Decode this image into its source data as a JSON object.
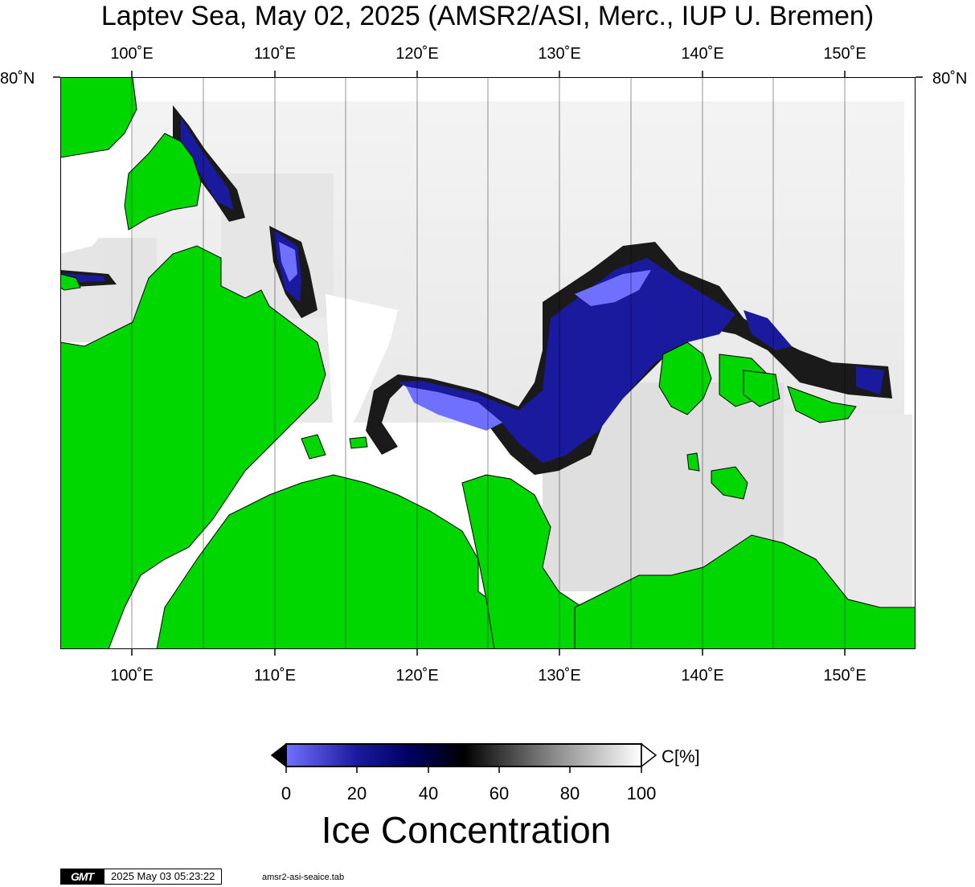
{
  "map": {
    "title": "Laptev Sea, May 02, 2025 (AMSR2/ASI, Merc., IUP U. Bremen)",
    "lon_labels": [
      "100˚E",
      "110˚E",
      "120˚E",
      "130˚E",
      "140˚E",
      "150˚E"
    ],
    "lat_label": "80˚N",
    "lon_range": [
      95,
      155
    ],
    "colors": {
      "land": "#00d700",
      "open_water": "#ffffff",
      "gridline": "#000000"
    }
  },
  "colorbar": {
    "ticks": [
      "0",
      "20",
      "40",
      "60",
      "80",
      "100"
    ],
    "unit": "C[%]",
    "title": "Ice Concentration",
    "stops": [
      {
        "value": 0,
        "color": "#7070ff"
      },
      {
        "value": 20,
        "color": "#1a1a9e"
      },
      {
        "value": 35,
        "color": "#000060"
      },
      {
        "value": 50,
        "color": "#000000"
      },
      {
        "value": 75,
        "color": "#888888"
      },
      {
        "value": 100,
        "color": "#ffffff"
      }
    ]
  },
  "footer": {
    "logo": "GMT",
    "timestamp": "2025 May 03 05:23:22",
    "file": "amsr2-asi-seaice.tab"
  }
}
